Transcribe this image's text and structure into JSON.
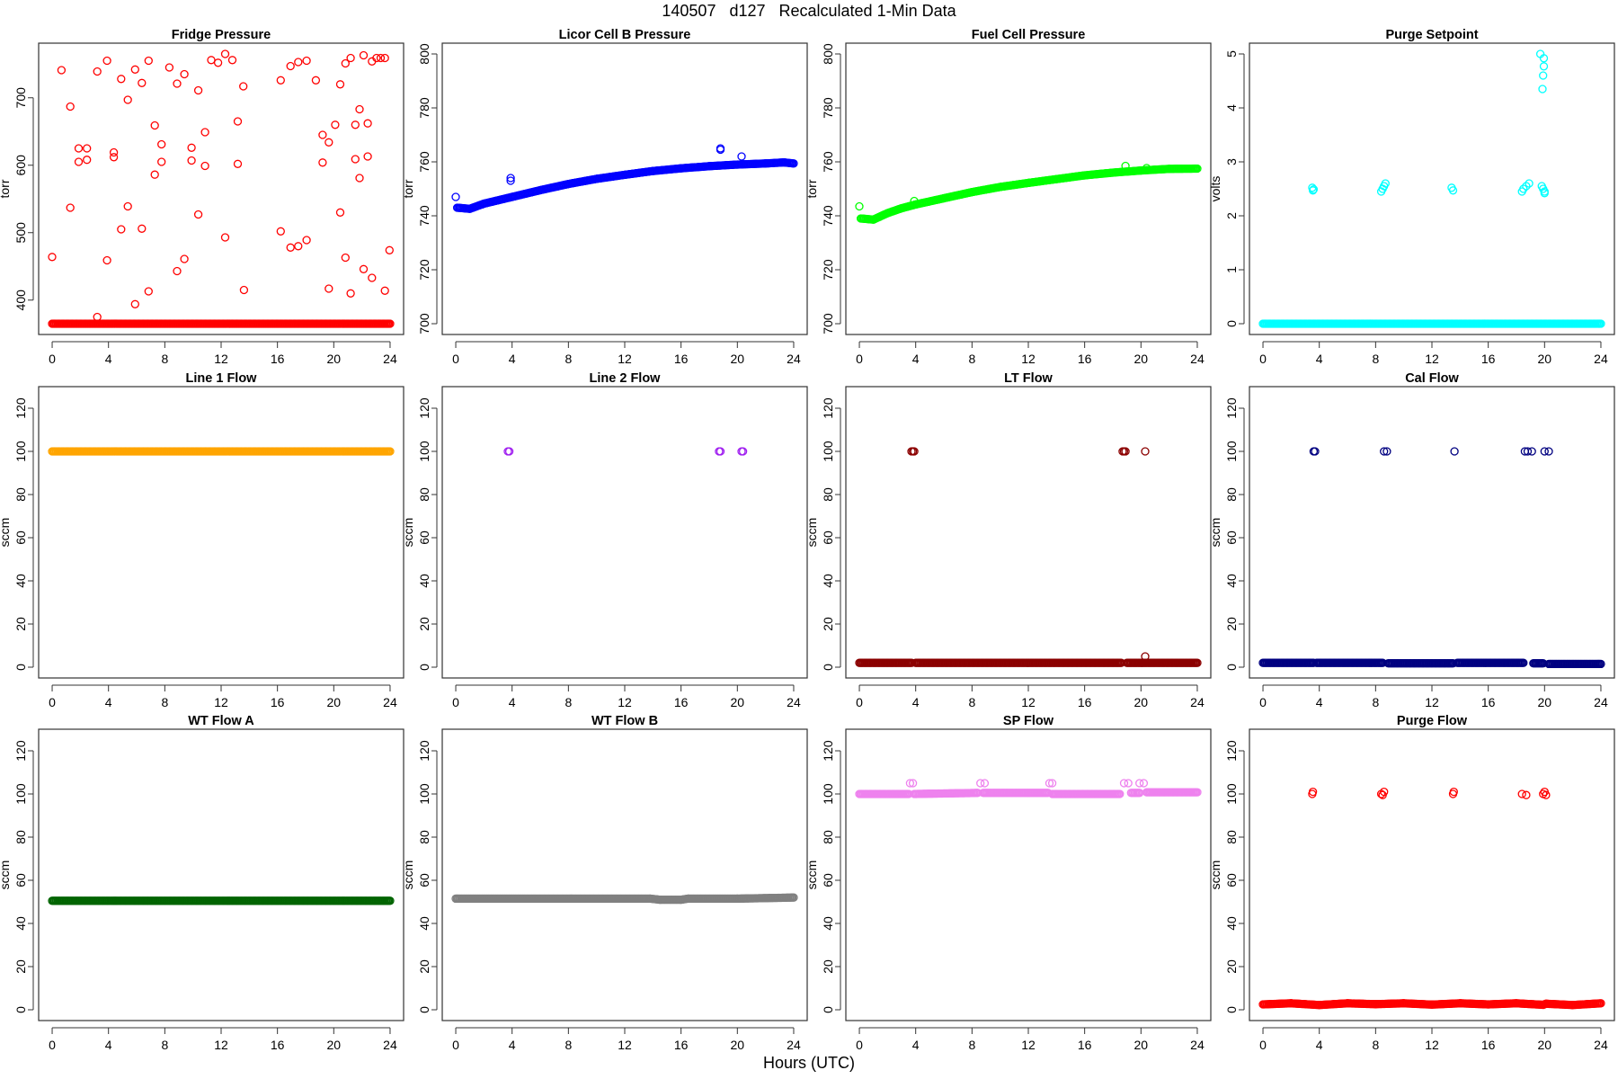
{
  "main_title": "140507   d127   Recalculated 1-Min Data",
  "xlabel": "Hours (UTC)",
  "chart_data": [
    {
      "type": "scatter",
      "title": "Fridge Pressure",
      "ylabel": "torr",
      "color": "#ff0000",
      "xlim": [
        0,
        24
      ],
      "ylim": [
        365,
        765
      ],
      "xticks": [
        0,
        4,
        8,
        12,
        16,
        20,
        24
      ],
      "yticks": [
        400,
        500,
        600,
        700
      ],
      "segments": [
        [
          [
            0,
            365
          ],
          [
            24,
            365
          ]
        ]
      ],
      "points": [
        [
          0,
          464
        ],
        [
          0.66,
          741
        ],
        [
          1.29,
          687
        ],
        [
          1.29,
          537
        ],
        [
          1.88,
          625
        ],
        [
          1.88,
          605
        ],
        [
          2.47,
          625
        ],
        [
          2.47,
          608
        ],
        [
          3.2,
          739
        ],
        [
          3.2,
          375
        ],
        [
          3.9,
          755
        ],
        [
          3.9,
          459
        ],
        [
          4.38,
          619
        ],
        [
          4.38,
          612
        ],
        [
          4.9,
          728
        ],
        [
          4.9,
          505
        ],
        [
          5.37,
          697
        ],
        [
          5.37,
          539
        ],
        [
          5.89,
          742
        ],
        [
          5.89,
          394
        ],
        [
          6.37,
          722
        ],
        [
          6.37,
          506
        ],
        [
          6.85,
          755
        ],
        [
          6.85,
          413
        ],
        [
          7.29,
          659
        ],
        [
          7.29,
          586
        ],
        [
          7.77,
          631
        ],
        [
          7.77,
          605
        ],
        [
          8.32,
          745
        ],
        [
          8.87,
          721
        ],
        [
          8.87,
          443
        ],
        [
          9.39,
          735
        ],
        [
          9.39,
          461
        ],
        [
          9.9,
          626
        ],
        [
          9.9,
          607
        ],
        [
          10.38,
          711
        ],
        [
          10.38,
          527
        ],
        [
          10.86,
          649
        ],
        [
          10.86,
          599
        ],
        [
          11.3,
          756
        ],
        [
          11.78,
          752
        ],
        [
          12.29,
          765
        ],
        [
          12.29,
          493
        ],
        [
          12.8,
          756
        ],
        [
          13.18,
          665
        ],
        [
          13.18,
          602
        ],
        [
          13.58,
          717
        ],
        [
          13.62,
          415
        ],
        [
          16.23,
          726
        ],
        [
          16.23,
          502
        ],
        [
          16.93,
          747
        ],
        [
          16.93,
          478
        ],
        [
          17.48,
          753
        ],
        [
          17.48,
          480
        ],
        [
          18.07,
          755
        ],
        [
          18.07,
          489
        ],
        [
          18.73,
          726
        ],
        [
          19.21,
          645
        ],
        [
          19.21,
          604
        ],
        [
          19.65,
          634
        ],
        [
          19.65,
          417
        ],
        [
          20.1,
          660
        ],
        [
          20.46,
          720
        ],
        [
          20.46,
          530
        ],
        [
          20.83,
          751
        ],
        [
          20.83,
          463
        ],
        [
          21.2,
          759
        ],
        [
          21.2,
          410
        ],
        [
          21.53,
          660
        ],
        [
          21.53,
          609
        ],
        [
          21.83,
          683
        ],
        [
          21.83,
          581
        ],
        [
          22.12,
          763
        ],
        [
          22.12,
          446
        ],
        [
          22.41,
          662
        ],
        [
          22.41,
          613
        ],
        [
          22.71,
          754
        ],
        [
          22.71,
          433
        ],
        [
          23.04,
          759
        ],
        [
          23.33,
          759
        ],
        [
          23.63,
          759
        ],
        [
          23.63,
          414
        ],
        [
          23.96,
          474
        ]
      ]
    },
    {
      "type": "scatter",
      "title": "Licor Cell B Pressure",
      "ylabel": "torr",
      "color": "#0000ff",
      "xlim": [
        0,
        24
      ],
      "ylim": [
        700,
        800
      ],
      "xticks": [
        0,
        4,
        8,
        12,
        16,
        20,
        24
      ],
      "yticks": [
        700,
        720,
        740,
        760,
        780,
        800
      ],
      "segments": [
        [
          [
            0.1,
            743
          ],
          [
            1,
            742.6
          ],
          [
            2,
            744.5
          ],
          [
            4,
            747
          ],
          [
            6,
            749.5
          ],
          [
            8,
            751.8
          ],
          [
            10,
            753.7
          ],
          [
            12,
            755.2
          ],
          [
            14,
            756.6
          ],
          [
            16,
            757.6
          ],
          [
            18,
            758.4
          ],
          [
            20,
            759
          ],
          [
            22,
            759.4
          ],
          [
            23.3,
            759.8
          ],
          [
            24,
            759.4
          ]
        ]
      ],
      "points": [
        [
          0,
          747
        ],
        [
          3.9,
          753
        ],
        [
          3.9,
          754
        ],
        [
          18.8,
          764.5
        ],
        [
          18.8,
          765
        ],
        [
          20.3,
          762
        ]
      ]
    },
    {
      "type": "scatter",
      "title": "Fuel Cell Pressure",
      "ylabel": "torr",
      "color": "#00ff00",
      "xlim": [
        0,
        24
      ],
      "ylim": [
        700,
        800
      ],
      "xticks": [
        0,
        4,
        8,
        12,
        16,
        20,
        24
      ],
      "yticks": [
        700,
        720,
        740,
        760,
        780,
        800
      ],
      "segments": [
        [
          [
            0.1,
            739
          ],
          [
            1,
            738.6
          ],
          [
            2,
            741
          ],
          [
            3,
            742.8
          ],
          [
            4,
            744.2
          ],
          [
            6,
            746.5
          ],
          [
            8,
            748.8
          ],
          [
            10,
            750.7
          ],
          [
            12,
            752.2
          ],
          [
            14,
            753.6
          ],
          [
            16,
            755
          ],
          [
            18,
            756
          ],
          [
            20,
            756.8
          ],
          [
            22,
            757.4
          ],
          [
            24,
            757.5
          ]
        ]
      ],
      "points": [
        [
          0,
          743.5
        ],
        [
          3.9,
          745.5
        ],
        [
          18.9,
          758.5
        ],
        [
          20.4,
          757.7
        ]
      ]
    },
    {
      "type": "scatter",
      "title": "Purge Setpoint",
      "ylabel": "volts",
      "color": "#00ffff",
      "xlim": [
        0,
        24
      ],
      "ylim": [
        0,
        5
      ],
      "xticks": [
        0,
        4,
        8,
        12,
        16,
        20,
        24
      ],
      "yticks": [
        0,
        1,
        2,
        3,
        4,
        5
      ],
      "segments": [
        [
          [
            0,
            0
          ],
          [
            24,
            0
          ]
        ]
      ],
      "points": [
        [
          3.5,
          2.52
        ],
        [
          3.55,
          2.47
        ],
        [
          3.6,
          2.49
        ],
        [
          8.4,
          2.45
        ],
        [
          8.5,
          2.5
        ],
        [
          8.6,
          2.55
        ],
        [
          8.7,
          2.6
        ],
        [
          13.4,
          2.52
        ],
        [
          13.5,
          2.47
        ],
        [
          18.4,
          2.45
        ],
        [
          18.5,
          2.5
        ],
        [
          18.7,
          2.55
        ],
        [
          18.9,
          2.6
        ],
        [
          19.8,
          2.55
        ],
        [
          19.9,
          2.5
        ],
        [
          20.0,
          2.45
        ],
        [
          20.0,
          2.42
        ],
        [
          19.7,
          5.0
        ],
        [
          19.95,
          4.92
        ],
        [
          19.95,
          4.77
        ],
        [
          19.9,
          4.6
        ],
        [
          19.85,
          4.35
        ]
      ]
    },
    {
      "type": "scatter",
      "title": "Line 1 Flow",
      "ylabel": "sccm",
      "color": "#ffa500",
      "xlim": [
        0,
        24
      ],
      "ylim": [
        0,
        125
      ],
      "xticks": [
        0,
        4,
        8,
        12,
        16,
        20,
        24
      ],
      "yticks": [
        0,
        20,
        40,
        60,
        80,
        100,
        120
      ],
      "segments": [
        [
          [
            0,
            100
          ],
          [
            24,
            100
          ]
        ]
      ],
      "points": []
    },
    {
      "type": "scatter",
      "title": "Line 2 Flow",
      "ylabel": "sccm",
      "color": "#a020f0",
      "xlim": [
        0,
        24
      ],
      "ylim": [
        0,
        125
      ],
      "xticks": [
        0,
        4,
        8,
        12,
        16,
        20,
        24
      ],
      "yticks": [
        0,
        20,
        40,
        60,
        80,
        100,
        120
      ],
      "segments": [],
      "points": [
        [
          3.7,
          100
        ],
        [
          3.8,
          100
        ],
        [
          18.7,
          100
        ],
        [
          18.8,
          100
        ],
        [
          20.3,
          100
        ],
        [
          20.4,
          100
        ]
      ]
    },
    {
      "type": "scatter",
      "title": "LT Flow",
      "ylabel": "sccm",
      "color": "#8b0000",
      "xlim": [
        0,
        24
      ],
      "ylim": [
        0,
        125
      ],
      "xticks": [
        0,
        4,
        8,
        12,
        16,
        20,
        24
      ],
      "yticks": [
        0,
        20,
        40,
        60,
        80,
        100,
        120
      ],
      "segments": [
        [
          [
            0,
            2
          ],
          [
            3.7,
            2
          ]
        ],
        [
          [
            4,
            2
          ],
          [
            18.6,
            2
          ]
        ],
        [
          [
            19,
            2
          ],
          [
            24,
            2
          ]
        ]
      ],
      "points": [
        [
          3.7,
          100
        ],
        [
          3.8,
          100
        ],
        [
          3.9,
          100
        ],
        [
          18.7,
          100
        ],
        [
          18.8,
          100
        ],
        [
          18.9,
          100
        ],
        [
          20.3,
          100
        ],
        [
          20.3,
          5
        ]
      ]
    },
    {
      "type": "scatter",
      "title": "Cal Flow",
      "ylabel": "sccm",
      "color": "#000080",
      "xlim": [
        0,
        24
      ],
      "ylim": [
        0,
        125
      ],
      "xticks": [
        0,
        4,
        8,
        12,
        16,
        20,
        24
      ],
      "yticks": [
        0,
        20,
        40,
        60,
        80,
        100,
        120
      ],
      "segments": [
        [
          [
            0,
            2
          ],
          [
            3.6,
            2
          ]
        ],
        [
          [
            3.8,
            2
          ],
          [
            8.5,
            2
          ]
        ],
        [
          [
            8.9,
            1.8
          ],
          [
            13.5,
            1.8
          ]
        ],
        [
          [
            13.8,
            2
          ],
          [
            18.5,
            2
          ]
        ],
        [
          [
            19.2,
            1.8
          ],
          [
            19.9,
            1.8
          ]
        ],
        [
          [
            20.3,
            1.5
          ],
          [
            24,
            1.5
          ]
        ]
      ],
      "points": [
        [
          3.6,
          100
        ],
        [
          3.7,
          100
        ],
        [
          8.6,
          100
        ],
        [
          8.8,
          100
        ],
        [
          13.6,
          100
        ],
        [
          18.6,
          100
        ],
        [
          18.8,
          100
        ],
        [
          19.1,
          100
        ],
        [
          20,
          100
        ],
        [
          20.3,
          100
        ]
      ]
    },
    {
      "type": "scatter",
      "title": "WT Flow A",
      "ylabel": "sccm",
      "color": "#006400",
      "xlim": [
        0,
        24
      ],
      "ylim": [
        0,
        125
      ],
      "xticks": [
        0,
        4,
        8,
        12,
        16,
        20,
        24
      ],
      "yticks": [
        0,
        20,
        40,
        60,
        80,
        100,
        120
      ],
      "segments": [
        [
          [
            0,
            50.5
          ],
          [
            24,
            50.5
          ]
        ]
      ],
      "points": []
    },
    {
      "type": "scatter",
      "title": "WT Flow B",
      "ylabel": "sccm",
      "color": "#808080",
      "xlim": [
        0,
        24
      ],
      "ylim": [
        0,
        125
      ],
      "xticks": [
        0,
        4,
        8,
        12,
        16,
        20,
        24
      ],
      "yticks": [
        0,
        20,
        40,
        60,
        80,
        100,
        120
      ],
      "segments": [
        [
          [
            0,
            51.5
          ],
          [
            13.8,
            51.5
          ],
          [
            14.5,
            51
          ],
          [
            16,
            51
          ],
          [
            16.5,
            51.5
          ],
          [
            20,
            51.5
          ],
          [
            24,
            52
          ]
        ]
      ],
      "points": []
    },
    {
      "type": "scatter",
      "title": "SP Flow",
      "ylabel": "sccm",
      "color": "#ee82ee",
      "xlim": [
        0,
        24
      ],
      "ylim": [
        0,
        125
      ],
      "xticks": [
        0,
        4,
        8,
        12,
        16,
        20,
        24
      ],
      "yticks": [
        0,
        20,
        40,
        60,
        80,
        100,
        120
      ],
      "segments": [
        [
          [
            0,
            100
          ],
          [
            3.5,
            100
          ]
        ],
        [
          [
            3.9,
            100
          ],
          [
            8.4,
            100.5
          ]
        ],
        [
          [
            8.8,
            100.5
          ],
          [
            13.4,
            100.5
          ]
        ],
        [
          [
            13.7,
            100
          ],
          [
            18.5,
            100
          ]
        ],
        [
          [
            19.3,
            100.5
          ],
          [
            19.9,
            100.5
          ]
        ],
        [
          [
            20.4,
            100.8
          ],
          [
            24,
            100.8
          ]
        ]
      ],
      "points": [
        [
          3.6,
          105
        ],
        [
          3.8,
          105
        ],
        [
          8.6,
          105
        ],
        [
          8.9,
          105
        ],
        [
          13.5,
          105
        ],
        [
          13.7,
          105
        ],
        [
          18.8,
          105
        ],
        [
          19.1,
          105
        ],
        [
          19.9,
          105
        ],
        [
          20.2,
          105
        ]
      ]
    },
    {
      "type": "scatter",
      "title": "Purge Flow",
      "ylabel": "sccm",
      "color": "#ff0000",
      "xlim": [
        0,
        24
      ],
      "ylim": [
        0,
        125
      ],
      "xticks": [
        0,
        4,
        8,
        12,
        16,
        20,
        24
      ],
      "yticks": [
        0,
        20,
        40,
        60,
        80,
        100,
        120
      ],
      "segments": [
        [
          [
            0,
            2.5
          ],
          [
            2,
            3
          ],
          [
            4,
            2.2
          ],
          [
            6,
            3
          ],
          [
            8,
            2.6
          ],
          [
            10,
            3
          ],
          [
            12,
            2.4
          ],
          [
            14,
            3
          ],
          [
            16,
            2.5
          ],
          [
            18,
            3
          ],
          [
            19.9,
            2.3
          ],
          [
            20.1,
            2.8
          ],
          [
            22,
            2.2
          ],
          [
            24,
            3
          ]
        ]
      ],
      "points": [
        [
          3.5,
          100
        ],
        [
          3.55,
          101
        ],
        [
          8.4,
          100
        ],
        [
          8.5,
          99.5
        ],
        [
          8.6,
          101
        ],
        [
          13.5,
          100
        ],
        [
          13.55,
          101
        ],
        [
          18.4,
          100
        ],
        [
          18.7,
          99.5
        ],
        [
          19.9,
          100
        ],
        [
          20.0,
          101
        ],
        [
          20.1,
          99.5
        ]
      ]
    }
  ]
}
